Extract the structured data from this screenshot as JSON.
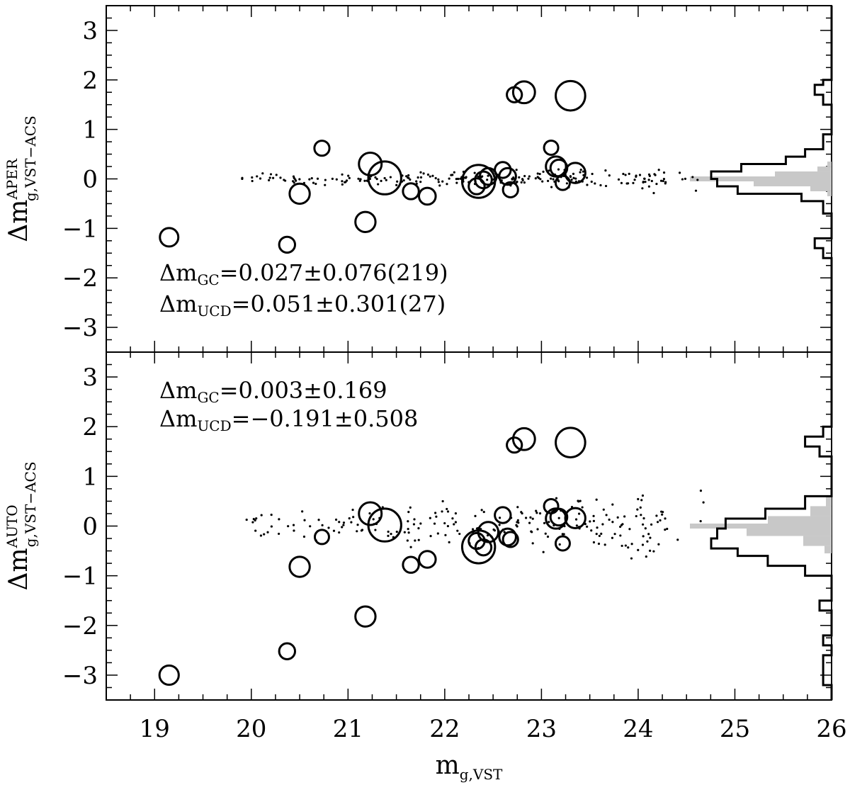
{
  "chart_data": {
    "type": "scatter",
    "xlim": [
      18.5,
      26
    ],
    "ylim": [
      -3.5,
      3.5
    ],
    "x_ticks": [
      "19",
      "20",
      "21",
      "22",
      "23",
      "24",
      "25",
      "26"
    ],
    "y_ticks": [
      "3",
      "2",
      "1",
      "0",
      "−1",
      "−2",
      "−3"
    ],
    "xlabel": {
      "main": "m",
      "sub": "g,VST"
    },
    "panels": [
      {
        "ylabel": {
          "main": "Δm",
          "sup": "APER",
          "sub": "g,VST−ACS"
        },
        "stats": [
          {
            "main": "Δm",
            "sub": "GC",
            "text": "=0.027±0.076(219)"
          },
          {
            "main": "Δm",
            "sub": "UCD",
            "text": "=0.051±0.301(27)"
          }
        ],
        "ucd": [
          {
            "x": 19.15,
            "y": -1.18,
            "size": 1
          },
          {
            "x": 20.37,
            "y": -1.33,
            "size": 0.7
          },
          {
            "x": 20.5,
            "y": -0.3,
            "size": 1.2
          },
          {
            "x": 20.73,
            "y": 0.62,
            "size": 0.6
          },
          {
            "x": 21.18,
            "y": -0.87,
            "size": 1.2
          },
          {
            "x": 21.23,
            "y": 0.3,
            "size": 1.5
          },
          {
            "x": 21.38,
            "y": 0.02,
            "size": 2.7
          },
          {
            "x": 21.65,
            "y": -0.25,
            "size": 0.7
          },
          {
            "x": 21.82,
            "y": -0.35,
            "size": 0.8
          },
          {
            "x": 22.33,
            "y": -0.15,
            "size": 0.7
          },
          {
            "x": 22.35,
            "y": -0.05,
            "size": 2.7
          },
          {
            "x": 22.4,
            "y": -0.02,
            "size": 0.8
          },
          {
            "x": 22.45,
            "y": 0.05,
            "size": 0.8
          },
          {
            "x": 22.6,
            "y": 0.18,
            "size": 0.7
          },
          {
            "x": 22.65,
            "y": 0.05,
            "size": 0.8
          },
          {
            "x": 22.68,
            "y": -0.22,
            "size": 0.6
          },
          {
            "x": 22.72,
            "y": 1.7,
            "size": 0.6
          },
          {
            "x": 22.82,
            "y": 1.75,
            "size": 1.4
          },
          {
            "x": 23.1,
            "y": 0.63,
            "size": 0.5
          },
          {
            "x": 23.15,
            "y": 0.25,
            "size": 1.2
          },
          {
            "x": 23.18,
            "y": 0.22,
            "size": 0.8
          },
          {
            "x": 23.22,
            "y": -0.08,
            "size": 0.5
          },
          {
            "x": 23.3,
            "y": 1.68,
            "size": 2.3
          },
          {
            "x": 23.35,
            "y": 0.12,
            "size": 1.2
          }
        ],
        "hist_black": [
          {
            "y0": 3.5,
            "y1": 2.0,
            "v": 0.0
          },
          {
            "y0": 2.0,
            "y1": 1.9,
            "v": 0.07
          },
          {
            "y0": 1.9,
            "y1": 1.7,
            "v": 0.14
          },
          {
            "y0": 1.7,
            "y1": 1.5,
            "v": 0.07
          },
          {
            "y0": 1.5,
            "y1": 1.3,
            "v": 0.0
          },
          {
            "y0": 1.3,
            "y1": 0.9,
            "v": 0.0
          },
          {
            "y0": 0.9,
            "y1": 0.6,
            "v": 0.07
          },
          {
            "y0": 0.6,
            "y1": 0.45,
            "v": 0.22
          },
          {
            "y0": 0.45,
            "y1": 0.3,
            "v": 0.38
          },
          {
            "y0": 0.3,
            "y1": 0.15,
            "v": 0.75
          },
          {
            "y0": 0.15,
            "y1": 0.0,
            "v": 1.0
          },
          {
            "y0": 0.0,
            "y1": -0.15,
            "v": 0.95
          },
          {
            "y0": -0.15,
            "y1": -0.3,
            "v": 0.78
          },
          {
            "y0": -0.3,
            "y1": -0.45,
            "v": 0.25
          },
          {
            "y0": -0.45,
            "y1": -0.7,
            "v": 0.07
          },
          {
            "y0": -0.7,
            "y1": -1.2,
            "v": 0.0
          },
          {
            "y0": -1.2,
            "y1": -1.4,
            "v": 0.14
          },
          {
            "y0": -1.4,
            "y1": -1.6,
            "v": 0.07
          },
          {
            "y0": -1.6,
            "y1": -3.5,
            "v": 0.0
          }
        ],
        "hist_gray": [
          {
            "y0": 0.35,
            "y1": 0.25,
            "v": 0.03
          },
          {
            "y0": 0.25,
            "y1": 0.15,
            "v": 0.1
          },
          {
            "y0": 0.15,
            "y1": 0.05,
            "v": 0.4
          },
          {
            "y0": 0.05,
            "y1": -0.05,
            "v": 1.0
          },
          {
            "y0": -0.05,
            "y1": -0.15,
            "v": 0.55
          },
          {
            "y0": -0.15,
            "y1": -0.25,
            "v": 0.15
          },
          {
            "y0": -0.25,
            "y1": -0.35,
            "v": 0.03
          }
        ]
      },
      {
        "ylabel": {
          "main": "Δm",
          "sup": "AUTO",
          "sub": "g,VST−ACS"
        },
        "stats": [
          {
            "main": "Δm",
            "sub": "GC",
            "text": "=0.003±0.169"
          },
          {
            "main": "Δm",
            "sub": "UCD",
            "text": "=−0.191±0.508"
          }
        ],
        "ucd": [
          {
            "x": 19.15,
            "y": -3.0,
            "size": 1.1
          },
          {
            "x": 20.37,
            "y": -2.52,
            "size": 0.7
          },
          {
            "x": 20.5,
            "y": -0.82,
            "size": 1.2
          },
          {
            "x": 20.73,
            "y": -0.22,
            "size": 0.5
          },
          {
            "x": 21.18,
            "y": -1.82,
            "size": 1.2
          },
          {
            "x": 21.23,
            "y": 0.25,
            "size": 1.5
          },
          {
            "x": 21.38,
            "y": 0.02,
            "size": 2.7
          },
          {
            "x": 21.65,
            "y": -0.78,
            "size": 0.7
          },
          {
            "x": 21.82,
            "y": -0.67,
            "size": 0.8
          },
          {
            "x": 22.33,
            "y": -0.3,
            "size": 0.7
          },
          {
            "x": 22.35,
            "y": -0.42,
            "size": 2.7
          },
          {
            "x": 22.4,
            "y": -0.43,
            "size": 0.7
          },
          {
            "x": 22.45,
            "y": -0.12,
            "size": 1.2
          },
          {
            "x": 22.6,
            "y": 0.22,
            "size": 0.7
          },
          {
            "x": 22.65,
            "y": -0.22,
            "size": 0.8
          },
          {
            "x": 22.68,
            "y": -0.27,
            "size": 0.6
          },
          {
            "x": 22.72,
            "y": 1.63,
            "size": 0.6
          },
          {
            "x": 22.82,
            "y": 1.75,
            "size": 1.4
          },
          {
            "x": 23.1,
            "y": 0.4,
            "size": 0.5
          },
          {
            "x": 23.15,
            "y": 0.15,
            "size": 1.2
          },
          {
            "x": 23.18,
            "y": 0.18,
            "size": 0.8
          },
          {
            "x": 23.22,
            "y": -0.35,
            "size": 0.5
          },
          {
            "x": 23.3,
            "y": 1.68,
            "size": 2.3
          },
          {
            "x": 23.35,
            "y": 0.16,
            "size": 1.2
          }
        ],
        "hist_black": [
          {
            "y0": 3.5,
            "y1": 2.0,
            "v": 0.0
          },
          {
            "y0": 2.0,
            "y1": 1.8,
            "v": 0.07
          },
          {
            "y0": 1.8,
            "y1": 1.6,
            "v": 0.22
          },
          {
            "y0": 1.6,
            "y1": 1.4,
            "v": 0.1
          },
          {
            "y0": 1.4,
            "y1": 1.0,
            "v": 0.0
          },
          {
            "y0": 1.0,
            "y1": 0.6,
            "v": 0.0
          },
          {
            "y0": 0.6,
            "y1": 0.35,
            "v": 0.22
          },
          {
            "y0": 0.35,
            "y1": 0.15,
            "v": 0.55
          },
          {
            "y0": 0.15,
            "y1": -0.05,
            "v": 0.88
          },
          {
            "y0": -0.05,
            "y1": -0.25,
            "v": 0.95
          },
          {
            "y0": -0.25,
            "y1": -0.45,
            "v": 1.0
          },
          {
            "y0": -0.45,
            "y1": -0.6,
            "v": 0.78
          },
          {
            "y0": -0.6,
            "y1": -0.8,
            "v": 0.53
          },
          {
            "y0": -0.8,
            "y1": -1.0,
            "v": 0.22
          },
          {
            "y0": -1.0,
            "y1": -1.5,
            "v": 0.0
          },
          {
            "y0": -1.5,
            "y1": -1.7,
            "v": 0.1
          },
          {
            "y0": -1.7,
            "y1": -2.2,
            "v": 0.0
          },
          {
            "y0": -2.2,
            "y1": -2.4,
            "v": 0.07
          },
          {
            "y0": -2.4,
            "y1": -2.6,
            "v": 0.0
          },
          {
            "y0": -2.6,
            "y1": -3.2,
            "v": 0.07
          },
          {
            "y0": -3.2,
            "y1": -3.5,
            "v": 0.0
          }
        ],
        "hist_gray": [
          {
            "y0": 0.6,
            "y1": 0.4,
            "v": 0.04
          },
          {
            "y0": 0.4,
            "y1": 0.2,
            "v": 0.15
          },
          {
            "y0": 0.2,
            "y1": 0.05,
            "v": 0.45
          },
          {
            "y0": 0.05,
            "y1": -0.05,
            "v": 1.0
          },
          {
            "y0": -0.05,
            "y1": -0.2,
            "v": 0.6
          },
          {
            "y0": -0.2,
            "y1": -0.4,
            "v": 0.2
          },
          {
            "y0": -0.4,
            "y1": -0.55,
            "v": 0.05
          }
        ]
      }
    ]
  }
}
